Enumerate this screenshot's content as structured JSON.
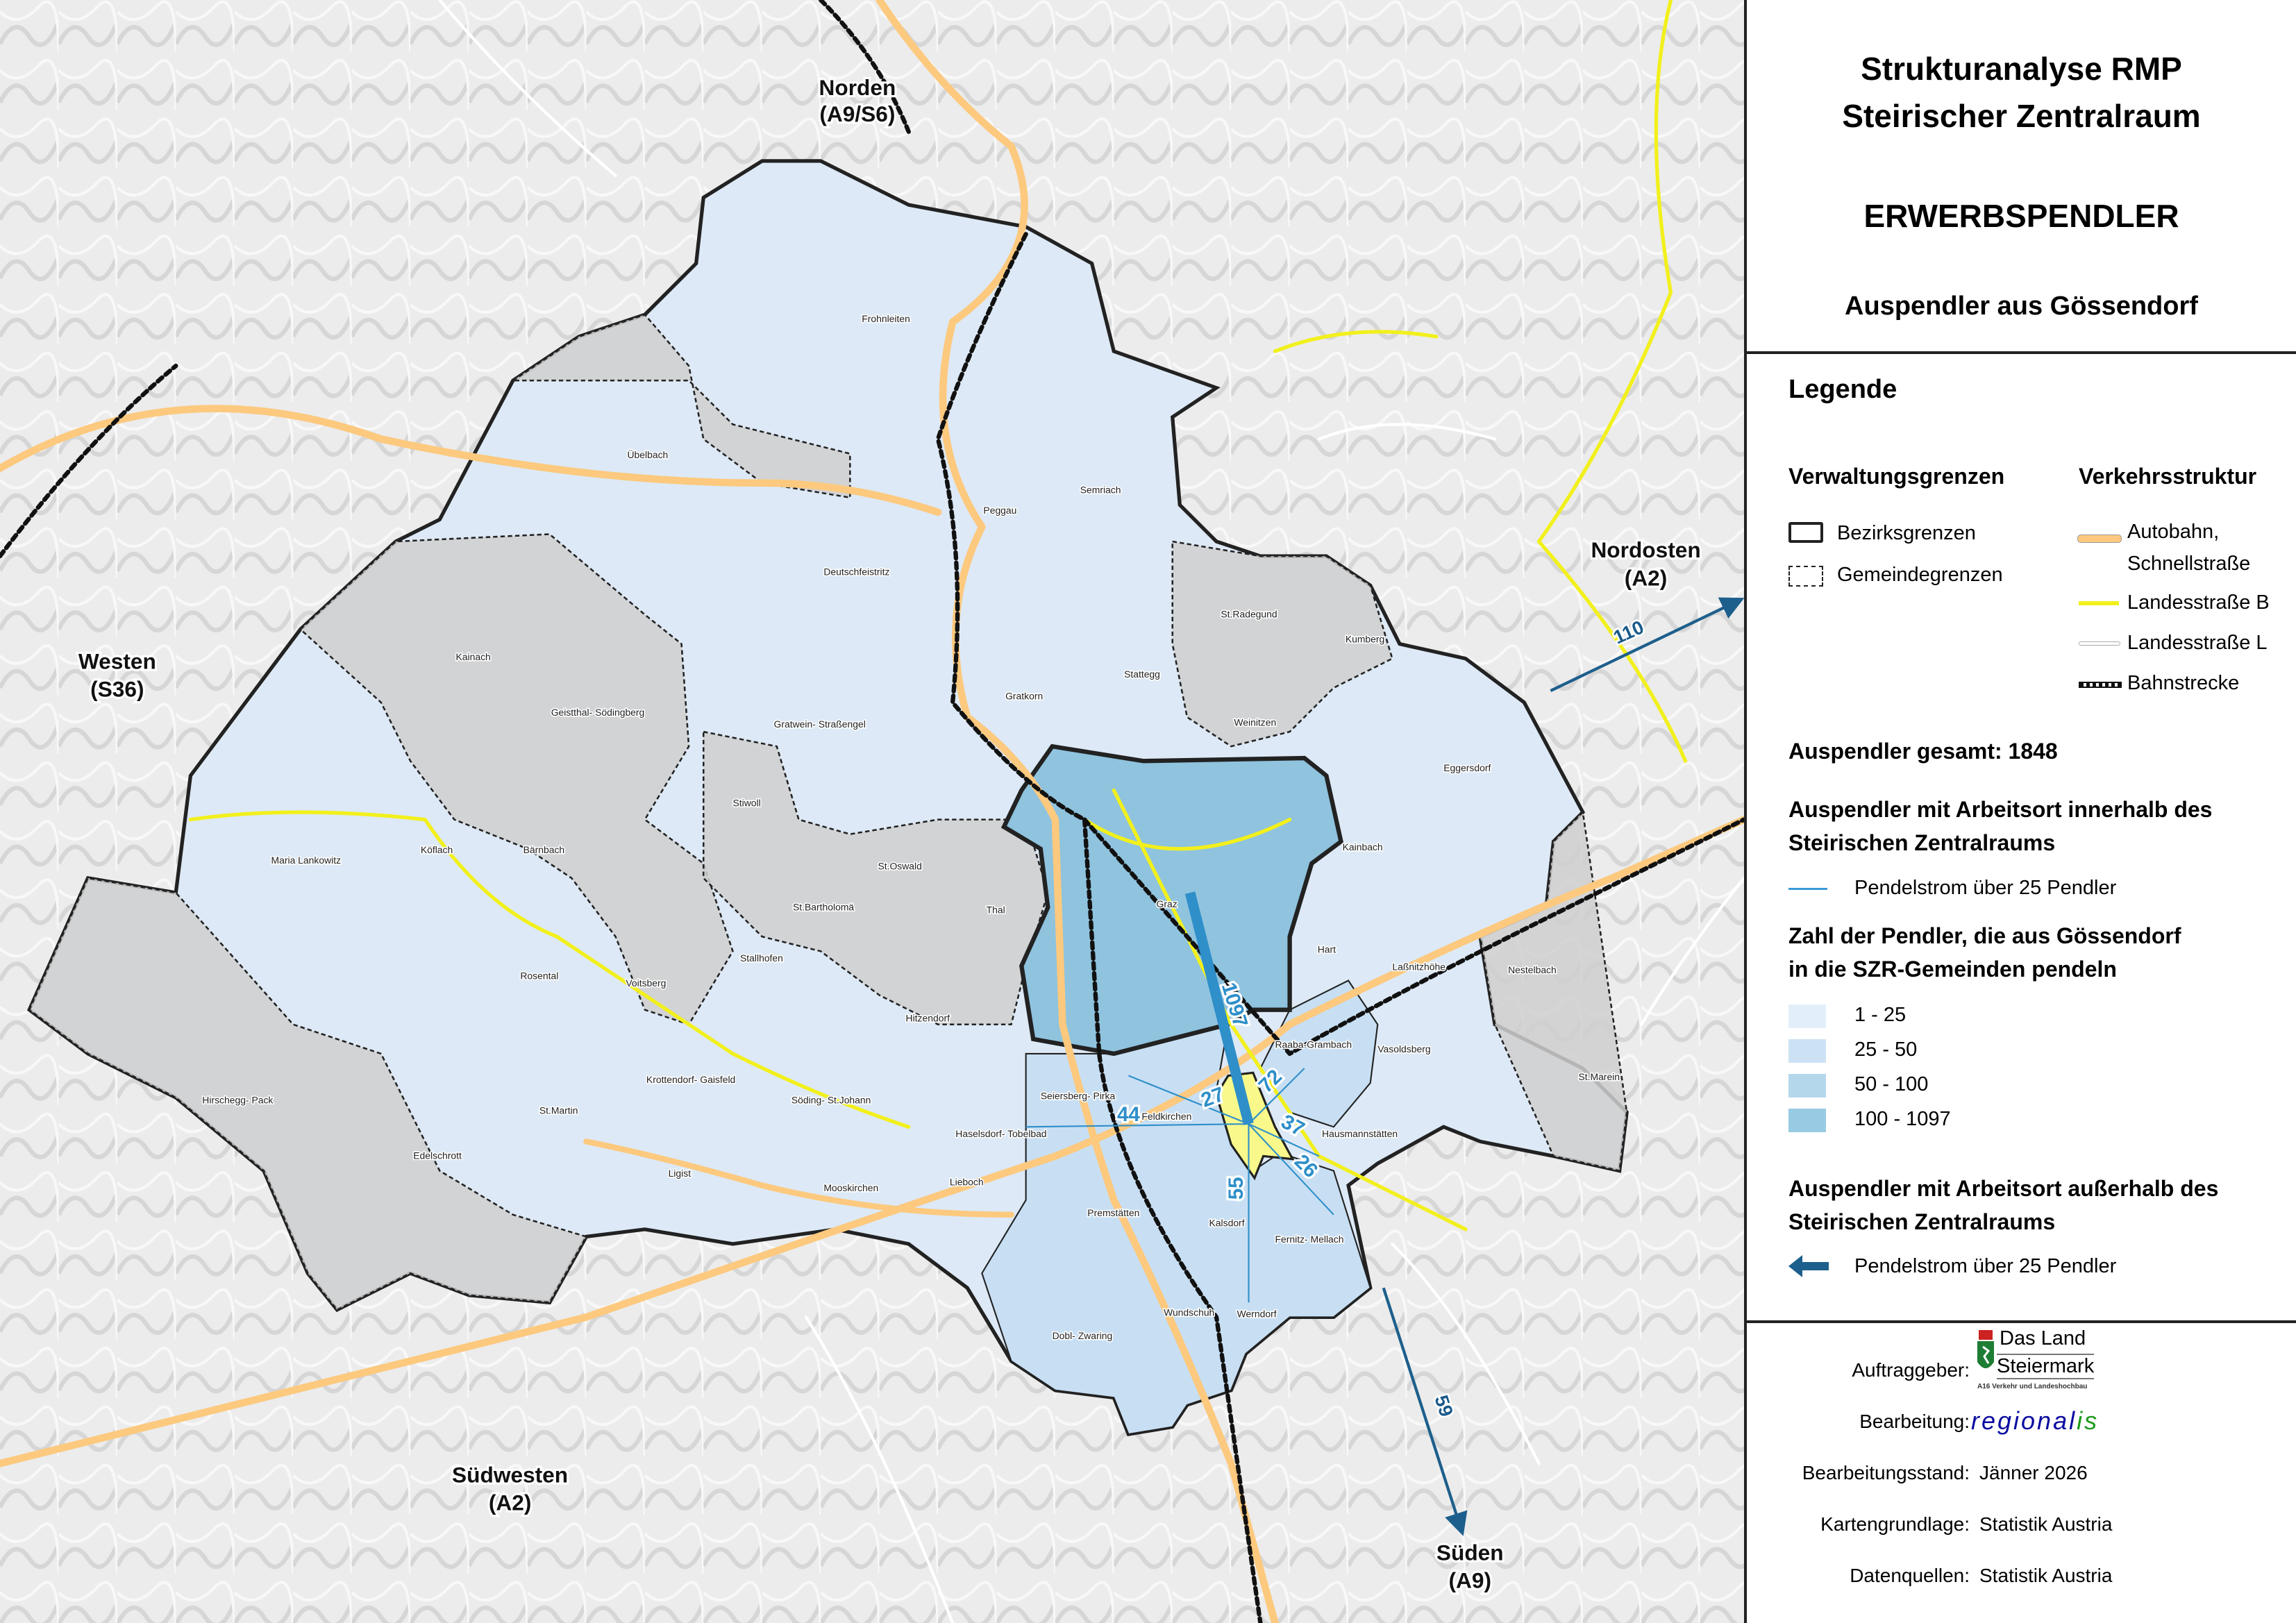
{
  "title": {
    "line1": "Strukturanalyse RMP",
    "line2": "Steirischer Zentralraum",
    "topic": "ERWERBSPENDLER",
    "subtitle": "Auspendler aus Gössendorf"
  },
  "legend": {
    "heading": "Legende",
    "admin": {
      "heading": "Verwaltungsgrenzen",
      "items": [
        "Bezirksgrenzen",
        "Gemeindegrenzen"
      ]
    },
    "traffic": {
      "heading": "Verkehrsstruktur",
      "items": [
        {
          "label": "Autobahn,",
          "label2": "Schnellstraße",
          "color": "#fcc97e"
        },
        {
          "label": "Landesstraße B",
          "color": "#f2f01c"
        },
        {
          "label": "Landesstraße L",
          "color": "#ffffff"
        },
        {
          "label": "Bahnstrecke",
          "color": "#111111"
        }
      ]
    },
    "total": "Auspendler gesamt: 1848",
    "inside": {
      "heading1": "Auspendler mit Arbeitsort innerhalb des",
      "heading2": "Steirischen Zentralraums",
      "flow_label": "Pendelstrom über 25 Pendler",
      "flow_color": "#3a9ad6"
    },
    "classes": {
      "heading1": "Zahl der Pendler, die aus Gössendorf",
      "heading2": "in die SZR-Gemeinden pendeln",
      "items": [
        {
          "label": "1 - 25",
          "color": "#e2effb"
        },
        {
          "label": "25 - 50",
          "color": "#cce2f4"
        },
        {
          "label": "50 - 100",
          "color": "#b4d7ec"
        },
        {
          "label": "100 - 1097",
          "color": "#98cbe3"
        }
      ]
    },
    "outside": {
      "heading1": "Auspendler mit Arbeitsort außerhalb des",
      "heading2": "Steirischen Zentralraums",
      "flow_label": "Pendelstrom über 25 Pendler",
      "flow_color": "#1d5f8c"
    }
  },
  "credits": {
    "client_label": "Auftraggeber:",
    "client_logo": {
      "line1": "Das Land",
      "line2": "Steiermark",
      "line3": "A16 Verkehr und Landeshochbau"
    },
    "editor_label": "Bearbeitung:",
    "editor_logo": {
      "part1": "regional",
      "part2": "is",
      "color1": "#0a0aa0",
      "color2": "#1a9a1a"
    },
    "date_label": "Bearbeitungsstand:",
    "date_value": "Jänner 2026",
    "basemap_label": "Kartengrundlage:",
    "basemap_value": "Statistik Austria",
    "sources_label": "Datenquellen:",
    "sources_value": "Statistik Austria"
  },
  "map": {
    "home_municipality": "Gössendorf",
    "home_color": "#f8f98a",
    "directions": [
      {
        "name": "Norden",
        "road": "(A9/S6)"
      },
      {
        "name": "Nordosten",
        "road": "(A2)"
      },
      {
        "name": "Westen",
        "road": "(S36)"
      },
      {
        "name": "Südwesten",
        "road": "(A2)"
      },
      {
        "name": "Süden",
        "road": "(A9)"
      }
    ],
    "external_flows": [
      {
        "direction": "Nordosten",
        "value": "110"
      },
      {
        "direction": "Süden",
        "value": "59"
      }
    ],
    "internal_flows": [
      {
        "destination": "Graz",
        "value": "1097"
      },
      {
        "value": "72"
      },
      {
        "value": "27"
      },
      {
        "value": "44"
      },
      {
        "value": "37"
      },
      {
        "value": "26"
      },
      {
        "value": "55"
      }
    ],
    "municipalities": [
      "Frohnleiten",
      "Übelbach",
      "Semriach",
      "Deutschfeistritz",
      "Peggau",
      "Kainach",
      "Geistthal- Södingberg",
      "Gratwein- Straßengel",
      "Gratkorn",
      "Stattegg",
      "St.Radegund",
      "Kumberg",
      "Weinitzen",
      "Eggersdorf",
      "Kainbach",
      "Maria Lankowitz",
      "Köflach",
      "Bärnbach",
      "Stiwoll",
      "St.Oswald",
      "St.Bartholomä",
      "Thal",
      "Graz",
      "Rosental",
      "Voitsberg",
      "Stallhofen",
      "Hart",
      "Laßnitzhöhe",
      "Nestelbach",
      "Hitzendorf",
      "Raaba-Grambach",
      "Vasoldsberg",
      "Krottendorf- Gaisfeld",
      "Söding- St.Johann",
      "Hirschegg- Pack",
      "St.Martin",
      "Seiersberg- Pirka",
      "Feldkirchen",
      "Haselsdorf- Tobelbad",
      "Hausmannstätten",
      "St.Marein",
      "Edelschrott",
      "Ligist",
      "Lieboch",
      "Mooskirchen",
      "Premstätten",
      "Kalsdorf",
      "Fernitz- Mellach",
      "Wundschuh",
      "Werndorf",
      "Dobl- Zwaring"
    ]
  }
}
